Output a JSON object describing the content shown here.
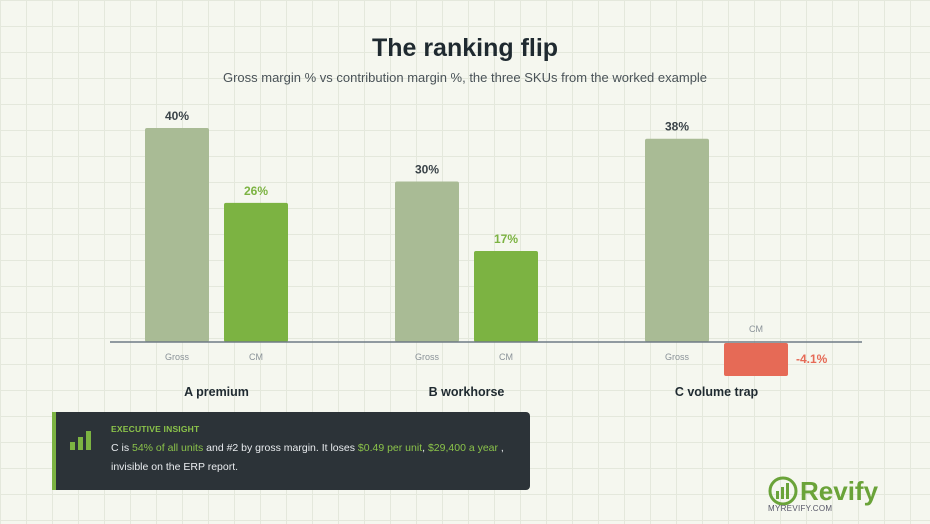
{
  "header": {
    "title": "The ranking flip",
    "subtitle": "Gross margin % vs contribution margin %, the three SKUs from the worked example"
  },
  "chart_data": {
    "type": "bar",
    "categories": [
      "A premium",
      "B workhorse",
      "C volume trap"
    ],
    "series": [
      {
        "name": "Gross",
        "values": [
          40,
          30,
          38
        ],
        "labels": [
          "40%",
          "30%",
          "38%"
        ]
      },
      {
        "name": "CM",
        "values": [
          26,
          17,
          -4.1
        ],
        "labels": [
          "26%",
          "17%",
          "-4.1%"
        ]
      }
    ],
    "bar_labels": [
      "Gross",
      "CM"
    ],
    "ylim": [
      -5,
      45
    ],
    "grid": true,
    "legend": "none",
    "colors": {
      "gross": "#a9bb95",
      "cm_positive": "#7cb342",
      "cm_negative": "#e66a56",
      "axis": "#6f7b85"
    }
  },
  "insight": {
    "heading": "EXECUTIVE INSIGHT",
    "text_1": "C is ",
    "hl_1": "54% of all units",
    "text_2": " and #2 by gross margin. It loses ",
    "hl_2": "$0.49 per unit",
    "text_3": ", ",
    "hl_3": "$29,400 a year",
    "text_4": " , invisible on the ERP report.",
    "icon": "bar-chart-icon"
  },
  "brand": {
    "name": "Revify",
    "url": "MYREVIFY.COM",
    "icon": "revify-logo-icon"
  }
}
